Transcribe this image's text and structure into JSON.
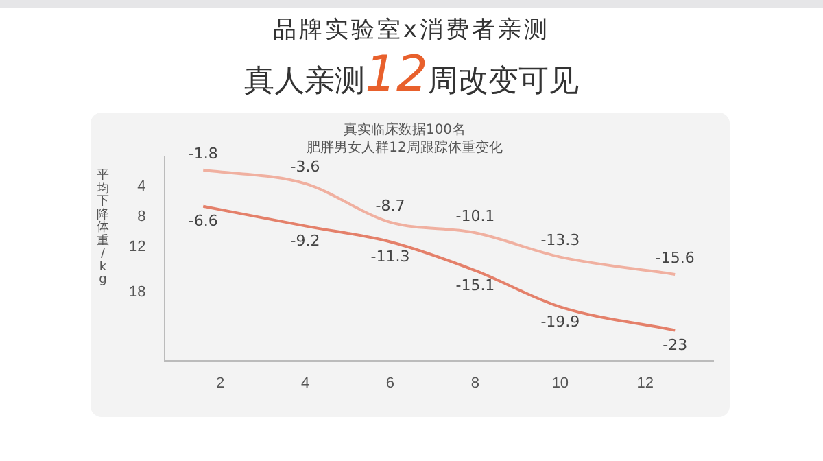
{
  "chart_data": {
    "type": "line",
    "title": "品牌实验室x消费者亲测",
    "subtitle": "真人亲测12周改变可见",
    "ylabel": "平均下降体重/kg",
    "annotations": [
      "真实临床数据100名",
      "肥胖男女人群12周跟踪体重变化"
    ],
    "x": [
      1.6,
      4,
      6,
      8,
      10,
      12.7
    ],
    "series": [
      {
        "color": "#f0b0a0",
        "values": [
          -1.8,
          -3.6,
          -8.7,
          -10.1,
          -13.3,
          -15.6
        ]
      },
      {
        "color": "#e4806a",
        "values": [
          -6.6,
          -9.2,
          -11.3,
          -15.1,
          -19.9,
          -23
        ]
      }
    ],
    "xlim": [
      0.7,
      13.6
    ],
    "xticks": [
      2,
      4,
      6,
      8,
      10,
      12
    ],
    "ylim": [
      -27,
      0
    ],
    "yticks": [
      {
        "value": -4,
        "label": "4"
      },
      {
        "value": -8,
        "label": "8"
      },
      {
        "value": -12,
        "label": "12"
      },
      {
        "value": -18,
        "label": "18"
      }
    ],
    "data_labels": true,
    "grid": false,
    "legend": false,
    "marker": "none"
  }
}
